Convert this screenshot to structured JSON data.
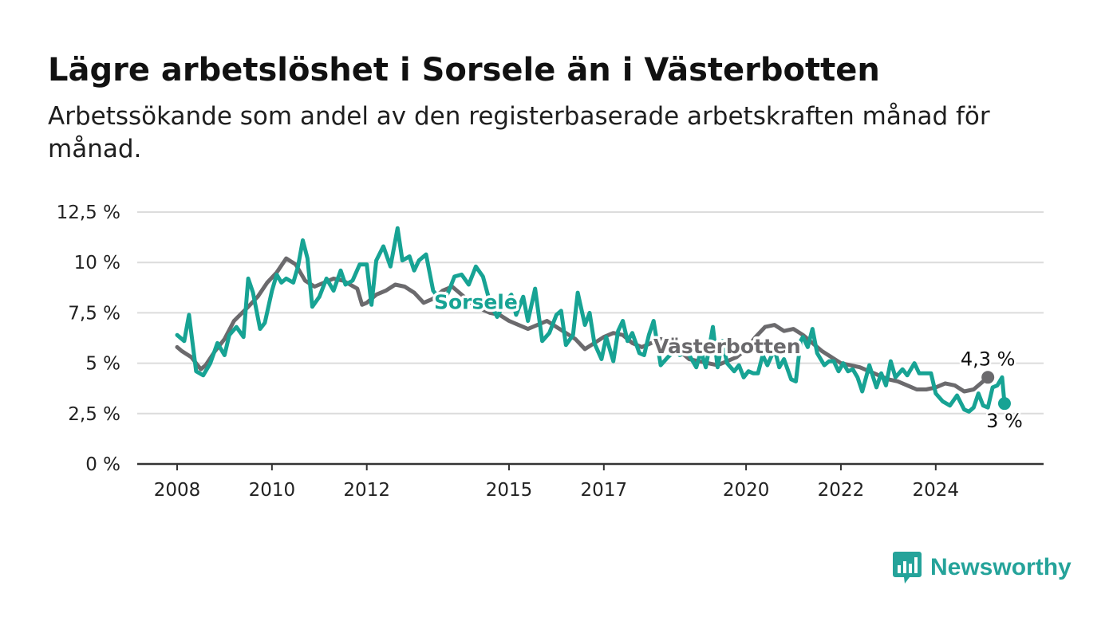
{
  "title": "Lägre arbetslöshet i Sorsele än i Västerbotten",
  "subtitle": "Arbetssökande som andel av den registerbaserade arbetskraften månad för månad.",
  "brand": "Newsworthy",
  "colors": {
    "sorsele": "#17a394",
    "vasterbotten": "#6b6a6d",
    "grid": "#dcdcdc",
    "axis": "#333333",
    "brand": "#25a39a"
  },
  "chart_data": {
    "type": "line",
    "ylim": [
      0,
      12.5
    ],
    "xlim": [
      2008.0,
      2025.4
    ],
    "y_ticks": [
      0,
      2.5,
      5,
      7.5,
      10,
      12.5
    ],
    "y_tick_labels": [
      "0 %",
      "2,5 %",
      "5 %",
      "7,5 %",
      "10 %",
      "12,5 %"
    ],
    "x_ticks": [
      2008,
      2010,
      2012,
      2015,
      2017,
      2020,
      2022,
      2024
    ],
    "x_tick_labels": [
      "2008",
      "2010",
      "2012",
      "2015",
      "2017",
      "2020",
      "2022",
      "2024"
    ],
    "grid": true,
    "series": [
      {
        "name": "Västerbotten",
        "color": "#6b6a6d",
        "end_label": "4,3 %",
        "points": [
          [
            2008.0,
            5.8
          ],
          [
            2008.1,
            5.6
          ],
          [
            2008.3,
            5.3
          ],
          [
            2008.5,
            4.7
          ],
          [
            2008.6,
            4.9
          ],
          [
            2008.8,
            5.6
          ],
          [
            2009.0,
            6.2
          ],
          [
            2009.2,
            7.1
          ],
          [
            2009.5,
            7.8
          ],
          [
            2009.7,
            8.3
          ],
          [
            2009.9,
            9.0
          ],
          [
            2010.1,
            9.5
          ],
          [
            2010.3,
            10.2
          ],
          [
            2010.5,
            9.9
          ],
          [
            2010.7,
            9.1
          ],
          [
            2010.9,
            8.8
          ],
          [
            2011.1,
            9.0
          ],
          [
            2011.3,
            9.2
          ],
          [
            2011.5,
            9.1
          ],
          [
            2011.8,
            8.7
          ],
          [
            2011.9,
            7.9
          ],
          [
            2012.0,
            8.0
          ],
          [
            2012.2,
            8.4
          ],
          [
            2012.4,
            8.6
          ],
          [
            2012.6,
            8.9
          ],
          [
            2012.8,
            8.8
          ],
          [
            2013.0,
            8.5
          ],
          [
            2013.2,
            8.0
          ],
          [
            2013.4,
            8.2
          ],
          [
            2013.6,
            8.6
          ],
          [
            2013.8,
            8.8
          ],
          [
            2014.0,
            8.4
          ],
          [
            2014.2,
            8.0
          ],
          [
            2014.4,
            7.7
          ],
          [
            2014.6,
            7.5
          ],
          [
            2014.8,
            7.4
          ],
          [
            2015.0,
            7.1
          ],
          [
            2015.2,
            6.9
          ],
          [
            2015.4,
            6.7
          ],
          [
            2015.6,
            6.9
          ],
          [
            2015.8,
            7.1
          ],
          [
            2016.0,
            6.8
          ],
          [
            2016.2,
            6.5
          ],
          [
            2016.4,
            6.2
          ],
          [
            2016.6,
            5.7
          ],
          [
            2016.8,
            6.0
          ],
          [
            2017.0,
            6.3
          ],
          [
            2017.2,
            6.5
          ],
          [
            2017.4,
            6.4
          ],
          [
            2017.6,
            6.0
          ],
          [
            2017.8,
            5.8
          ],
          [
            2018.0,
            6.0
          ],
          [
            2018.2,
            6.2
          ],
          [
            2018.4,
            6.1
          ],
          [
            2018.6,
            5.6
          ],
          [
            2018.8,
            5.2
          ],
          [
            2019.0,
            5.1
          ],
          [
            2019.2,
            5.0
          ],
          [
            2019.4,
            4.9
          ],
          [
            2019.6,
            5.1
          ],
          [
            2019.8,
            5.3
          ],
          [
            2020.0,
            5.7
          ],
          [
            2020.2,
            6.3
          ],
          [
            2020.4,
            6.8
          ],
          [
            2020.6,
            6.9
          ],
          [
            2020.8,
            6.6
          ],
          [
            2021.0,
            6.7
          ],
          [
            2021.2,
            6.4
          ],
          [
            2021.4,
            6.0
          ],
          [
            2021.6,
            5.6
          ],
          [
            2021.8,
            5.3
          ],
          [
            2022.0,
            5.0
          ],
          [
            2022.2,
            4.9
          ],
          [
            2022.4,
            4.8
          ],
          [
            2022.6,
            4.6
          ],
          [
            2022.8,
            4.4
          ],
          [
            2023.0,
            4.2
          ],
          [
            2023.2,
            4.1
          ],
          [
            2023.4,
            3.9
          ],
          [
            2023.6,
            3.7
          ],
          [
            2023.8,
            3.7
          ],
          [
            2024.0,
            3.8
          ],
          [
            2024.2,
            4.0
          ],
          [
            2024.4,
            3.9
          ],
          [
            2024.6,
            3.6
          ],
          [
            2024.8,
            3.7
          ],
          [
            2025.1,
            4.3
          ]
        ]
      },
      {
        "name": "Sorsele",
        "color": "#17a394",
        "end_label": "3 %",
        "points": [
          [
            2008.0,
            6.4
          ],
          [
            2008.15,
            6.1
          ],
          [
            2008.25,
            7.4
          ],
          [
            2008.4,
            4.6
          ],
          [
            2008.55,
            4.4
          ],
          [
            2008.7,
            5.0
          ],
          [
            2008.85,
            6.0
          ],
          [
            2009.0,
            5.4
          ],
          [
            2009.1,
            6.4
          ],
          [
            2009.25,
            6.8
          ],
          [
            2009.4,
            6.3
          ],
          [
            2009.5,
            9.2
          ],
          [
            2009.6,
            8.5
          ],
          [
            2009.75,
            6.7
          ],
          [
            2009.85,
            7.0
          ],
          [
            2010.0,
            8.6
          ],
          [
            2010.1,
            9.4
          ],
          [
            2010.2,
            9.0
          ],
          [
            2010.3,
            9.2
          ],
          [
            2010.45,
            9.0
          ],
          [
            2010.55,
            9.8
          ],
          [
            2010.65,
            11.1
          ],
          [
            2010.75,
            10.2
          ],
          [
            2010.85,
            7.8
          ],
          [
            2011.0,
            8.3
          ],
          [
            2011.15,
            9.2
          ],
          [
            2011.3,
            8.6
          ],
          [
            2011.45,
            9.6
          ],
          [
            2011.55,
            8.9
          ],
          [
            2011.7,
            9.1
          ],
          [
            2011.85,
            9.9
          ],
          [
            2012.0,
            9.9
          ],
          [
            2012.1,
            7.9
          ],
          [
            2012.2,
            10.1
          ],
          [
            2012.35,
            10.8
          ],
          [
            2012.5,
            9.8
          ],
          [
            2012.65,
            11.7
          ],
          [
            2012.75,
            10.1
          ],
          [
            2012.9,
            10.3
          ],
          [
            2013.0,
            9.6
          ],
          [
            2013.1,
            10.1
          ],
          [
            2013.25,
            10.4
          ],
          [
            2013.4,
            8.6
          ],
          [
            2013.5,
            8.3
          ],
          [
            2013.6,
            7.9
          ],
          [
            2013.75,
            8.7
          ],
          [
            2013.85,
            9.3
          ],
          [
            2014.0,
            9.4
          ],
          [
            2014.15,
            8.9
          ],
          [
            2014.3,
            9.8
          ],
          [
            2014.45,
            9.3
          ],
          [
            2014.6,
            8.0
          ],
          [
            2014.75,
            7.3
          ],
          [
            2014.9,
            8.0
          ],
          [
            2015.05,
            8.4
          ],
          [
            2015.15,
            7.4
          ],
          [
            2015.3,
            8.3
          ],
          [
            2015.4,
            7.1
          ],
          [
            2015.55,
            8.7
          ],
          [
            2015.7,
            6.1
          ],
          [
            2015.85,
            6.5
          ],
          [
            2016.0,
            7.4
          ],
          [
            2016.1,
            7.6
          ],
          [
            2016.2,
            5.9
          ],
          [
            2016.35,
            6.4
          ],
          [
            2016.45,
            8.5
          ],
          [
            2016.6,
            6.9
          ],
          [
            2016.7,
            7.5
          ],
          [
            2016.8,
            6.0
          ],
          [
            2016.95,
            5.2
          ],
          [
            2017.05,
            6.3
          ],
          [
            2017.2,
            5.1
          ],
          [
            2017.3,
            6.6
          ],
          [
            2017.4,
            7.1
          ],
          [
            2017.5,
            6.1
          ],
          [
            2017.6,
            6.5
          ],
          [
            2017.75,
            5.5
          ],
          [
            2017.85,
            5.4
          ],
          [
            2017.95,
            6.4
          ],
          [
            2018.05,
            7.1
          ],
          [
            2018.2,
            4.9
          ],
          [
            2018.35,
            5.3
          ],
          [
            2018.5,
            5.6
          ],
          [
            2018.6,
            5.4
          ],
          [
            2018.75,
            5.6
          ],
          [
            2018.85,
            5.2
          ],
          [
            2018.95,
            4.8
          ],
          [
            2019.05,
            5.6
          ],
          [
            2019.15,
            4.8
          ],
          [
            2019.3,
            6.8
          ],
          [
            2019.4,
            4.8
          ],
          [
            2019.5,
            6.1
          ],
          [
            2019.6,
            5.0
          ],
          [
            2019.75,
            4.6
          ],
          [
            2019.85,
            4.9
          ],
          [
            2019.95,
            4.3
          ],
          [
            2020.05,
            4.6
          ],
          [
            2020.15,
            4.5
          ],
          [
            2020.25,
            4.5
          ],
          [
            2020.35,
            5.4
          ],
          [
            2020.45,
            4.9
          ],
          [
            2020.6,
            5.7
          ],
          [
            2020.7,
            4.8
          ],
          [
            2020.8,
            5.2
          ],
          [
            2020.95,
            4.2
          ],
          [
            2021.05,
            4.1
          ],
          [
            2021.15,
            6.1
          ],
          [
            2021.2,
            6.3
          ],
          [
            2021.3,
            5.8
          ],
          [
            2021.4,
            6.7
          ],
          [
            2021.5,
            5.5
          ],
          [
            2021.65,
            4.9
          ],
          [
            2021.75,
            5.1
          ],
          [
            2021.85,
            5.1
          ],
          [
            2021.95,
            4.6
          ],
          [
            2022.05,
            5.0
          ],
          [
            2022.15,
            4.6
          ],
          [
            2022.25,
            4.7
          ],
          [
            2022.35,
            4.3
          ],
          [
            2022.45,
            3.6
          ],
          [
            2022.6,
            4.9
          ],
          [
            2022.75,
            3.8
          ],
          [
            2022.85,
            4.5
          ],
          [
            2022.95,
            3.9
          ],
          [
            2023.05,
            5.1
          ],
          [
            2023.15,
            4.3
          ],
          [
            2023.3,
            4.7
          ],
          [
            2023.4,
            4.4
          ],
          [
            2023.55,
            5.0
          ],
          [
            2023.65,
            4.5
          ],
          [
            2023.8,
            4.5
          ],
          [
            2023.9,
            4.5
          ],
          [
            2024.0,
            3.5
          ],
          [
            2024.15,
            3.1
          ],
          [
            2024.3,
            2.9
          ],
          [
            2024.45,
            3.4
          ],
          [
            2024.6,
            2.7
          ],
          [
            2024.7,
            2.6
          ],
          [
            2024.8,
            2.8
          ],
          [
            2024.9,
            3.5
          ],
          [
            2025.0,
            2.9
          ],
          [
            2025.1,
            2.8
          ],
          [
            2025.2,
            3.8
          ],
          [
            2025.3,
            3.9
          ],
          [
            2025.4,
            4.3
          ],
          [
            2025.45,
            3.0
          ]
        ]
      }
    ],
    "annotations": [
      {
        "text": "Sorsele",
        "series": "Sorsele",
        "at": [
          2014.3,
          7.7
        ]
      },
      {
        "text": "Västerbotten",
        "series": "Västerbotten",
        "at": [
          2019.6,
          5.5
        ]
      }
    ]
  }
}
